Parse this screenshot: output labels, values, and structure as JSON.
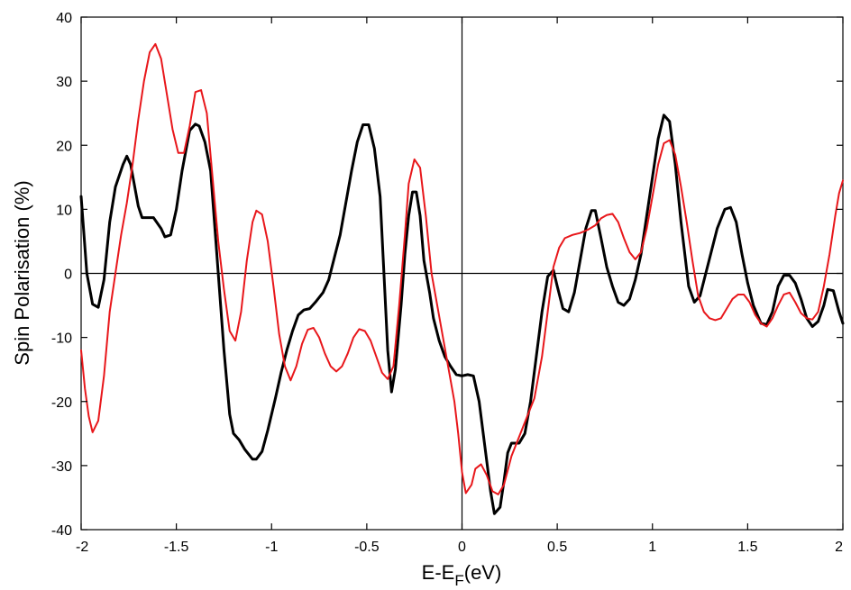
{
  "chart_data": {
    "type": "line",
    "xlabel_main": "E-E",
    "xlabel_sub": "F",
    "xlabel_tail": "(eV)",
    "ylabel": "Spin Polarisation (%)",
    "xlim": [
      -2,
      2
    ],
    "ylim": [
      -40,
      40
    ],
    "xticks": [
      -2,
      -1.5,
      -1,
      -0.5,
      0,
      0.5,
      1,
      1.5,
      2
    ],
    "xtick_labels": [
      "-2",
      "-1.5",
      "-1",
      "-0.5",
      "0",
      "0.5",
      "1",
      "1.5",
      "2"
    ],
    "yticks": [
      -40,
      -30,
      -20,
      -10,
      0,
      10,
      20,
      30,
      40
    ],
    "ytick_labels": [
      "-40",
      "-30",
      "-20",
      "-10",
      "0",
      "10",
      "20",
      "30",
      "40"
    ],
    "grid": false,
    "legend": "none",
    "reference_lines": {
      "horizontal_y": 0,
      "vertical_x": 0
    },
    "series": [
      {
        "color": "#000000",
        "points": [
          [
            -2.0,
            12
          ],
          [
            -1.97,
            0
          ],
          [
            -1.94,
            -4.8
          ],
          [
            -1.91,
            -5.3
          ],
          [
            -1.88,
            -1
          ],
          [
            -1.85,
            8
          ],
          [
            -1.82,
            13.5
          ],
          [
            -1.78,
            17
          ],
          [
            -1.76,
            18.3
          ],
          [
            -1.74,
            17
          ],
          [
            -1.7,
            10.5
          ],
          [
            -1.68,
            8.7
          ],
          [
            -1.65,
            8.7
          ],
          [
            -1.62,
            8.7
          ],
          [
            -1.58,
            7
          ],
          [
            -1.56,
            5.7
          ],
          [
            -1.53,
            6
          ],
          [
            -1.5,
            10
          ],
          [
            -1.47,
            16
          ],
          [
            -1.43,
            22.3
          ],
          [
            -1.4,
            23.3
          ],
          [
            -1.38,
            23
          ],
          [
            -1.35,
            20.5
          ],
          [
            -1.32,
            16
          ],
          [
            -1.3,
            8
          ],
          [
            -1.28,
            0
          ],
          [
            -1.25,
            -12
          ],
          [
            -1.22,
            -22
          ],
          [
            -1.2,
            -25
          ],
          [
            -1.17,
            -26
          ],
          [
            -1.14,
            -27.5
          ],
          [
            -1.1,
            -29
          ],
          [
            -1.08,
            -29
          ],
          [
            -1.05,
            -27.8
          ],
          [
            -1.02,
            -24.5
          ],
          [
            -0.98,
            -19.5
          ],
          [
            -0.95,
            -15.5
          ],
          [
            -0.92,
            -12
          ],
          [
            -0.89,
            -9
          ],
          [
            -0.86,
            -6.5
          ],
          [
            -0.83,
            -5.7
          ],
          [
            -0.8,
            -5.5
          ],
          [
            -0.77,
            -4.5
          ],
          [
            -0.73,
            -3
          ],
          [
            -0.7,
            -1
          ],
          [
            -0.67,
            2.5
          ],
          [
            -0.64,
            6
          ],
          [
            -0.61,
            11
          ],
          [
            -0.58,
            16
          ],
          [
            -0.55,
            20.5
          ],
          [
            -0.52,
            23.2
          ],
          [
            -0.49,
            23.2
          ],
          [
            -0.46,
            19.5
          ],
          [
            -0.43,
            12
          ],
          [
            -0.41,
            0
          ],
          [
            -0.39,
            -12
          ],
          [
            -0.37,
            -18.5
          ],
          [
            -0.35,
            -15
          ],
          [
            -0.32,
            -5
          ],
          [
            -0.3,
            3
          ],
          [
            -0.28,
            9
          ],
          [
            -0.26,
            12.7
          ],
          [
            -0.24,
            12.7
          ],
          [
            -0.22,
            9
          ],
          [
            -0.2,
            2
          ],
          [
            -0.17,
            -3
          ],
          [
            -0.15,
            -7
          ],
          [
            -0.12,
            -10.5
          ],
          [
            -0.09,
            -13
          ],
          [
            -0.06,
            -14.5
          ],
          [
            -0.03,
            -15.8
          ],
          [
            0.0,
            -16
          ],
          [
            0.03,
            -15.8
          ],
          [
            0.06,
            -16
          ],
          [
            0.09,
            -20
          ],
          [
            0.12,
            -27
          ],
          [
            0.15,
            -34
          ],
          [
            0.17,
            -37.5
          ],
          [
            0.2,
            -36.5
          ],
          [
            0.22,
            -32.5
          ],
          [
            0.24,
            -28
          ],
          [
            0.26,
            -26.5
          ],
          [
            0.3,
            -26.5
          ],
          [
            0.33,
            -25
          ],
          [
            0.36,
            -20
          ],
          [
            0.39,
            -13
          ],
          [
            0.42,
            -6
          ],
          [
            0.45,
            -0.5
          ],
          [
            0.48,
            0.5
          ],
          [
            0.5,
            -2
          ],
          [
            0.53,
            -5.5
          ],
          [
            0.56,
            -6
          ],
          [
            0.59,
            -3
          ],
          [
            0.62,
            2
          ],
          [
            0.65,
            7
          ],
          [
            0.68,
            9.8
          ],
          [
            0.7,
            9.8
          ],
          [
            0.73,
            5.5
          ],
          [
            0.76,
            1
          ],
          [
            0.79,
            -2
          ],
          [
            0.82,
            -4.5
          ],
          [
            0.85,
            -5
          ],
          [
            0.88,
            -4
          ],
          [
            0.91,
            -1
          ],
          [
            0.94,
            3
          ],
          [
            0.97,
            9
          ],
          [
            1.0,
            15
          ],
          [
            1.03,
            21
          ],
          [
            1.06,
            24.7
          ],
          [
            1.09,
            23.7
          ],
          [
            1.12,
            17
          ],
          [
            1.15,
            8
          ],
          [
            1.19,
            -2
          ],
          [
            1.22,
            -4.5
          ],
          [
            1.25,
            -3.5
          ],
          [
            1.28,
            0
          ],
          [
            1.31,
            3.5
          ],
          [
            1.34,
            7
          ],
          [
            1.38,
            10
          ],
          [
            1.41,
            10.3
          ],
          [
            1.44,
            8
          ],
          [
            1.47,
            3
          ],
          [
            1.5,
            -1.5
          ],
          [
            1.53,
            -5
          ],
          [
            1.57,
            -7.8
          ],
          [
            1.6,
            -8
          ],
          [
            1.63,
            -6
          ],
          [
            1.66,
            -2
          ],
          [
            1.69,
            -0.3
          ],
          [
            1.72,
            -0.3
          ],
          [
            1.75,
            -1.5
          ],
          [
            1.78,
            -4
          ],
          [
            1.81,
            -7
          ],
          [
            1.84,
            -8.3
          ],
          [
            1.87,
            -7.5
          ],
          [
            1.9,
            -5
          ],
          [
            1.92,
            -2.5
          ],
          [
            1.95,
            -2.7
          ],
          [
            1.98,
            -6
          ],
          [
            2.0,
            -7.8
          ]
        ]
      },
      {
        "color": "#e8171b",
        "points": [
          [
            -2.0,
            -12
          ],
          [
            -1.98,
            -18
          ],
          [
            -1.96,
            -22.3
          ],
          [
            -1.94,
            -24.8
          ],
          [
            -1.91,
            -23
          ],
          [
            -1.88,
            -16
          ],
          [
            -1.85,
            -6
          ],
          [
            -1.82,
            0
          ],
          [
            -1.79,
            6
          ],
          [
            -1.76,
            11
          ],
          [
            -1.73,
            17
          ],
          [
            -1.7,
            24
          ],
          [
            -1.67,
            30
          ],
          [
            -1.64,
            34.5
          ],
          [
            -1.61,
            35.8
          ],
          [
            -1.58,
            33.5
          ],
          [
            -1.55,
            28
          ],
          [
            -1.52,
            22.5
          ],
          [
            -1.49,
            18.8
          ],
          [
            -1.46,
            18.8
          ],
          [
            -1.43,
            23
          ],
          [
            -1.4,
            28.3
          ],
          [
            -1.37,
            28.6
          ],
          [
            -1.34,
            25
          ],
          [
            -1.31,
            15
          ],
          [
            -1.28,
            5
          ],
          [
            -1.25,
            -2.5
          ],
          [
            -1.22,
            -9
          ],
          [
            -1.19,
            -10.5
          ],
          [
            -1.16,
            -6
          ],
          [
            -1.13,
            2
          ],
          [
            -1.1,
            8
          ],
          [
            -1.08,
            9.8
          ],
          [
            -1.05,
            9.2
          ],
          [
            -1.02,
            5
          ],
          [
            -0.99,
            -2
          ],
          [
            -0.96,
            -9.5
          ],
          [
            -0.93,
            -14.5
          ],
          [
            -0.9,
            -16.7
          ],
          [
            -0.87,
            -14.5
          ],
          [
            -0.84,
            -11
          ],
          [
            -0.81,
            -8.8
          ],
          [
            -0.78,
            -8.5
          ],
          [
            -0.75,
            -10
          ],
          [
            -0.72,
            -12.5
          ],
          [
            -0.69,
            -14.5
          ],
          [
            -0.66,
            -15.3
          ],
          [
            -0.63,
            -14.5
          ],
          [
            -0.6,
            -12.5
          ],
          [
            -0.57,
            -10
          ],
          [
            -0.54,
            -8.7
          ],
          [
            -0.51,
            -9
          ],
          [
            -0.48,
            -10.5
          ],
          [
            -0.45,
            -13
          ],
          [
            -0.42,
            -15.5
          ],
          [
            -0.39,
            -16.5
          ],
          [
            -0.36,
            -14.5
          ],
          [
            -0.33,
            -5
          ],
          [
            -0.3,
            6
          ],
          [
            -0.28,
            14
          ],
          [
            -0.25,
            17.8
          ],
          [
            -0.22,
            16.5
          ],
          [
            -0.19,
            9
          ],
          [
            -0.16,
            0
          ],
          [
            -0.13,
            -5
          ],
          [
            -0.1,
            -10
          ],
          [
            -0.07,
            -15
          ],
          [
            -0.04,
            -20
          ],
          [
            -0.02,
            -25
          ],
          [
            0.0,
            -31
          ],
          [
            0.02,
            -34.3
          ],
          [
            0.05,
            -33
          ],
          [
            0.07,
            -30.5
          ],
          [
            0.1,
            -29.8
          ],
          [
            0.13,
            -31.5
          ],
          [
            0.16,
            -34
          ],
          [
            0.19,
            -34.5
          ],
          [
            0.22,
            -33
          ],
          [
            0.26,
            -28.5
          ],
          [
            0.3,
            -25.5
          ],
          [
            0.34,
            -22.5
          ],
          [
            0.38,
            -19.5
          ],
          [
            0.42,
            -13
          ],
          [
            0.45,
            -6
          ],
          [
            0.48,
            1
          ],
          [
            0.51,
            4
          ],
          [
            0.54,
            5.5
          ],
          [
            0.58,
            6
          ],
          [
            0.62,
            6.3
          ],
          [
            0.66,
            6.8
          ],
          [
            0.7,
            7.5
          ],
          [
            0.73,
            8.6
          ],
          [
            0.76,
            9.1
          ],
          [
            0.79,
            9.3
          ],
          [
            0.82,
            8
          ],
          [
            0.85,
            5.5
          ],
          [
            0.88,
            3.3
          ],
          [
            0.91,
            2.2
          ],
          [
            0.94,
            3.3
          ],
          [
            0.97,
            7
          ],
          [
            1.0,
            12
          ],
          [
            1.03,
            17
          ],
          [
            1.06,
            20.3
          ],
          [
            1.09,
            20.8
          ],
          [
            1.12,
            18.5
          ],
          [
            1.15,
            13.5
          ],
          [
            1.18,
            8
          ],
          [
            1.21,
            2
          ],
          [
            1.24,
            -3.5
          ],
          [
            1.27,
            -6
          ],
          [
            1.3,
            -7
          ],
          [
            1.33,
            -7.3
          ],
          [
            1.36,
            -7
          ],
          [
            1.39,
            -5.5
          ],
          [
            1.42,
            -4
          ],
          [
            1.45,
            -3.3
          ],
          [
            1.48,
            -3.3
          ],
          [
            1.51,
            -4.5
          ],
          [
            1.54,
            -6.5
          ],
          [
            1.57,
            -7.8
          ],
          [
            1.6,
            -8.3
          ],
          [
            1.63,
            -7
          ],
          [
            1.66,
            -5
          ],
          [
            1.69,
            -3.3
          ],
          [
            1.72,
            -3
          ],
          [
            1.75,
            -4.5
          ],
          [
            1.78,
            -6.2
          ],
          [
            1.81,
            -7
          ],
          [
            1.84,
            -7.2
          ],
          [
            1.87,
            -6
          ],
          [
            1.9,
            -2
          ],
          [
            1.93,
            3
          ],
          [
            1.96,
            9
          ],
          [
            1.98,
            12.5
          ],
          [
            2.0,
            14.5
          ]
        ]
      }
    ]
  }
}
